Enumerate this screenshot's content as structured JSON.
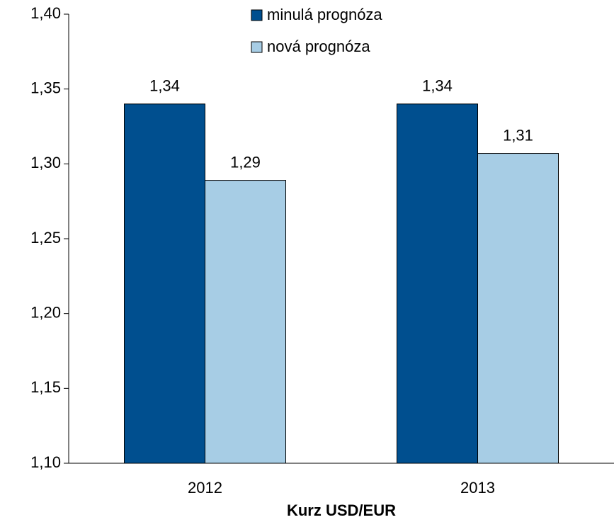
{
  "chart_data": {
    "type": "bar",
    "x_label": "Kurz USD/EUR",
    "categories": [
      "2012",
      "2013"
    ],
    "series": [
      {
        "name": "minulá prognóza",
        "color": "#004f8f",
        "values": [
          1.34,
          1.34
        ],
        "value_labels": [
          "1,34",
          "1,34"
        ]
      },
      {
        "name": "nová prognóza",
        "color": "#a7cde5",
        "values": [
          1.289,
          1.307
        ],
        "value_labels": [
          "1,29",
          "1,31"
        ]
      }
    ],
    "ylim": [
      1.1,
      1.4
    ],
    "yticks": [
      {
        "value": 1.1,
        "label": "1,10"
      },
      {
        "value": 1.15,
        "label": "1,15"
      },
      {
        "value": 1.2,
        "label": "1,20"
      },
      {
        "value": 1.25,
        "label": "1,25"
      },
      {
        "value": 1.3,
        "label": "1,30"
      },
      {
        "value": 1.35,
        "label": "1,35"
      },
      {
        "value": 1.4,
        "label": "1,40"
      }
    ],
    "grid": false,
    "legend": "top"
  }
}
